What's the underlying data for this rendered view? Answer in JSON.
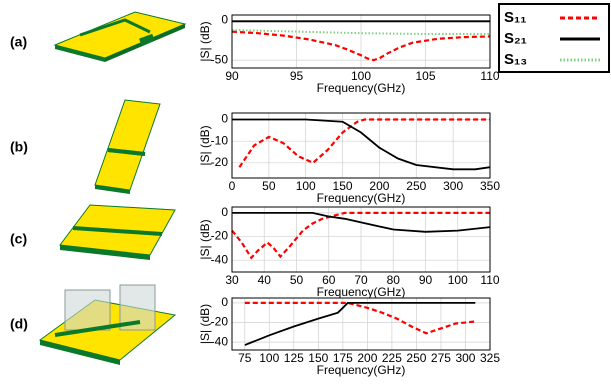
{
  "chart_data": [
    {
      "type": "line",
      "label": "(a)",
      "xlabel": "Frequency(GHz)",
      "ylabel": "|S| (dB)",
      "xlim": [
        90,
        110
      ],
      "ylim": [
        -60,
        7
      ],
      "xticks": [
        90,
        95,
        100,
        105,
        110
      ],
      "yticks": [
        -50,
        0
      ],
      "grid": true,
      "series": [
        {
          "name": "S₁₁",
          "color": "#ff0000",
          "line_style": "dashed",
          "x": [
            90,
            92,
            94,
            96,
            98,
            99,
            100,
            100.5,
            101,
            101.5,
            102,
            103,
            104,
            106,
            108,
            110
          ],
          "values": [
            -14,
            -16,
            -19,
            -24,
            -31,
            -37,
            -44,
            -48,
            -50,
            -47,
            -42,
            -34,
            -28,
            -23,
            -21,
            -20
          ]
        },
        {
          "name": "S₂₁",
          "color": "#000000",
          "line_style": "solid",
          "x": [
            90,
            95,
            100,
            105,
            110
          ],
          "values": [
            -1,
            -1,
            -1,
            -1,
            -1
          ]
        },
        {
          "name": "S₁₃",
          "color": "#7fd17f",
          "line_style": "dotted",
          "x": [
            90,
            95,
            100,
            105,
            110
          ],
          "values": [
            -12,
            -14,
            -16,
            -17,
            -17
          ]
        }
      ]
    },
    {
      "type": "line",
      "label": "(b)",
      "xlabel": "Frequency(GHz)",
      "ylabel": "|S| (dB)",
      "xlim": [
        0,
        350
      ],
      "ylim": [
        -27,
        3
      ],
      "xticks": [
        0,
        50,
        100,
        150,
        200,
        250,
        300,
        350
      ],
      "yticks": [
        -20,
        -10,
        0
      ],
      "grid": true,
      "series": [
        {
          "color": "#ff0000",
          "line_style": "dashed",
          "x": [
            10,
            30,
            50,
            70,
            90,
            110,
            130,
            150,
            170,
            180,
            200,
            250,
            300,
            350
          ],
          "values": [
            -22,
            -12,
            -8,
            -11,
            -17,
            -20,
            -14,
            -6,
            -1,
            0,
            0,
            0,
            0,
            0
          ]
        },
        {
          "color": "#000000",
          "line_style": "solid",
          "x": [
            0,
            100,
            150,
            175,
            200,
            225,
            250,
            300,
            330,
            350
          ],
          "values": [
            0,
            0,
            -1,
            -6,
            -13,
            -18,
            -21,
            -23,
            -23,
            -22
          ]
        }
      ]
    },
    {
      "type": "line",
      "label": "(c)",
      "xlabel": "Frequency(GHz)",
      "ylabel": "|S| (dB)",
      "xlim": [
        30,
        110
      ],
      "ylim": [
        -50,
        5
      ],
      "xticks": [
        30,
        40,
        50,
        60,
        70,
        80,
        90,
        100,
        110
      ],
      "yticks": [
        -40,
        -20,
        0
      ],
      "grid": true,
      "series": [
        {
          "color": "#ff0000",
          "line_style": "dashed",
          "x": [
            30,
            33,
            36,
            38,
            41,
            43,
            45,
            48,
            52,
            55,
            58,
            62,
            65,
            80,
            110
          ],
          "values": [
            -15,
            -25,
            -38,
            -32,
            -25,
            -30,
            -37,
            -28,
            -15,
            -9,
            -5,
            -2,
            0,
            0,
            0
          ]
        },
        {
          "color": "#000000",
          "line_style": "solid",
          "x": [
            30,
            55,
            60,
            65,
            70,
            80,
            90,
            100,
            110
          ],
          "values": [
            0,
            0,
            -3,
            -5,
            -8,
            -14,
            -16,
            -15,
            -12
          ]
        }
      ]
    },
    {
      "type": "line",
      "label": "(d)",
      "xlabel": "Frequency(GHz)",
      "ylabel": "|S| (dB)",
      "xlim": [
        62,
        325
      ],
      "ylim": [
        -48,
        5
      ],
      "xticks": [
        75,
        100,
        125,
        150,
        175,
        200,
        225,
        250,
        275,
        300,
        325
      ],
      "yticks": [
        -40,
        -20,
        0
      ],
      "grid": true,
      "series": [
        {
          "color": "#ff0000",
          "line_style": "dashed",
          "x": [
            75,
            180,
            200,
            215,
            230,
            245,
            260,
            275,
            290,
            310
          ],
          "values": [
            0,
            0,
            -5,
            -10,
            -16,
            -24,
            -31,
            -26,
            -21,
            -19
          ]
        },
        {
          "color": "#000000",
          "line_style": "solid",
          "x": [
            75,
            100,
            125,
            150,
            170,
            175,
            180,
            200,
            250,
            310
          ],
          "values": [
            -43,
            -33,
            -24,
            -16,
            -10,
            -5,
            0,
            0,
            0,
            0
          ]
        }
      ]
    }
  ]
}
